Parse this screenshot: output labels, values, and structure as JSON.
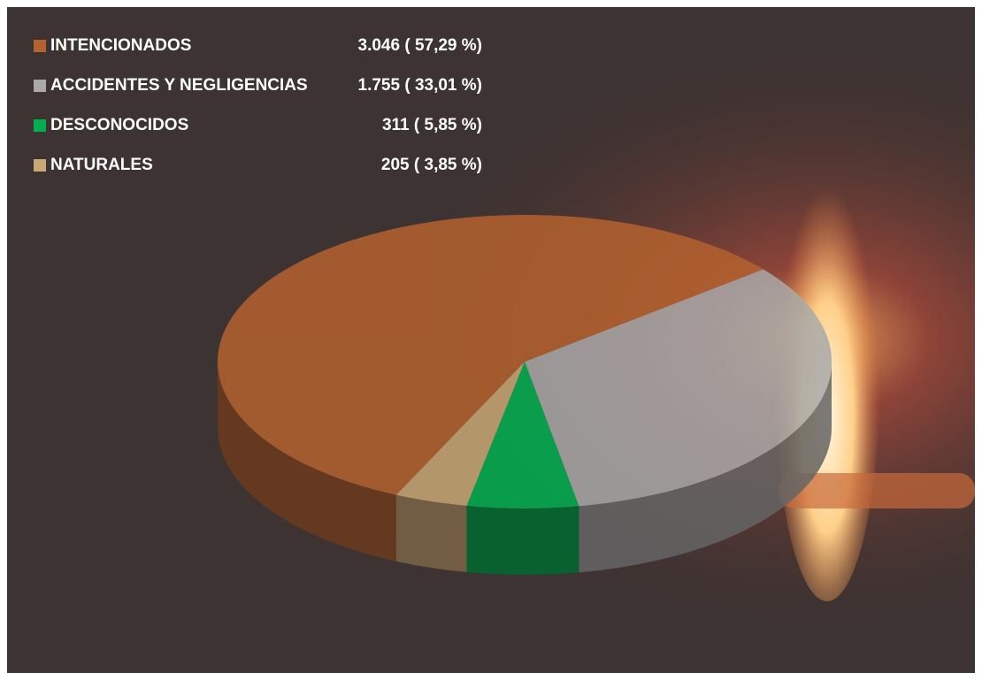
{
  "chart_data": {
    "type": "pie",
    "categories": [
      "INTENCIONADOS",
      "ACCIDENTES Y NEGLIGENCIAS",
      "DESCONOCIDOS",
      "NATURALES"
    ],
    "values": [
      3046,
      1755,
      311,
      205
    ],
    "value_labels": [
      "3.046 ( 57,29 %)",
      "1.755 ( 33,01 %)",
      "311 ( 5,85 %)",
      "205 ( 3,85 %)"
    ],
    "colors": [
      "#b4622e",
      "#a9a9a9",
      "#00b050",
      "#c9a875"
    ]
  }
}
